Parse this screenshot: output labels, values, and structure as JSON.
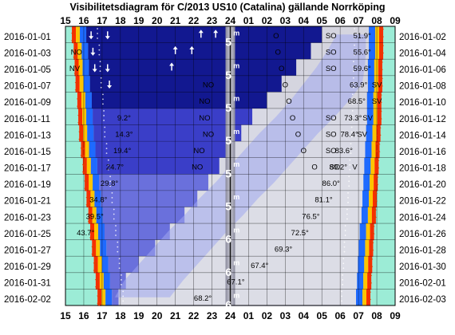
{
  "chart_data": {
    "type": "heatmap",
    "title": "Visibilitetsdiagram för C/2013 US10 (Catalina) gällande Norrköping",
    "x_tick_labels": [
      "15",
      "16",
      "17",
      "18",
      "19",
      "20",
      "21",
      "22",
      "23",
      "24",
      "01",
      "02",
      "03",
      "04",
      "05",
      "06",
      "07",
      "08",
      "09"
    ],
    "x_range_hours": [
      15,
      33
    ],
    "left_dates": [
      "2016-01-01",
      "2016-01-03",
      "2016-01-05",
      "2016-01-07",
      "2016-01-09",
      "2016-01-11",
      "2016-01-13",
      "2016-01-15",
      "2016-01-17",
      "2016-01-19",
      "2016-01-21",
      "2016-01-23",
      "2016-01-25",
      "2016-01-27",
      "2016-01-29",
      "2016-01-31",
      "2016-02-02"
    ],
    "right_dates": [
      "2016-01-02",
      "2016-01-04",
      "2016-01-06",
      "2016-01-08",
      "2016-01-10",
      "2016-01-12",
      "2016-01-14",
      "2016-01-16",
      "2016-01-18",
      "2016-01-20",
      "2016-01-22",
      "2016-01-24",
      "2016-01-26",
      "2016-01-28",
      "2016-01-30",
      "2016-02-01",
      "2016-02-03"
    ],
    "sunset_hour": [
      15.7,
      15.8,
      15.85,
      15.9,
      16.0,
      16.05,
      16.1,
      16.2,
      16.3,
      16.4,
      16.5,
      16.6,
      16.7,
      16.8,
      16.9,
      17.0,
      17.1
    ],
    "sunrise_hour": [
      32.0,
      32.0,
      31.95,
      31.95,
      31.9,
      31.9,
      31.85,
      31.8,
      31.75,
      31.7,
      31.65,
      31.6,
      31.5,
      31.45,
      31.4,
      31.35,
      31.3
    ],
    "comet_altitude_labels": [
      {
        "row": 0,
        "hour": 31.2,
        "text": "51.9°"
      },
      {
        "row": 1,
        "hour": 31.2,
        "text": "55.6°"
      },
      {
        "row": 2,
        "hour": 31.2,
        "text": "59.6°"
      },
      {
        "row": 3,
        "hour": 31.0,
        "text": "63.9°"
      },
      {
        "row": 4,
        "hour": 30.9,
        "text": "68.5°"
      },
      {
        "row": 5,
        "hour": 30.7,
        "text": "73.3°"
      },
      {
        "row": 6,
        "hour": 30.5,
        "text": "78.4°"
      },
      {
        "row": 7,
        "hour": 30.2,
        "text": "83.6°"
      },
      {
        "row": 8,
        "hour": 29.9,
        "text": "89.2°"
      },
      {
        "row": 9,
        "hour": 29.5,
        "text": "86.0°"
      },
      {
        "row": 10,
        "hour": 29.1,
        "text": "81.1°"
      },
      {
        "row": 11,
        "hour": 28.4,
        "text": "76.5°"
      },
      {
        "row": 12,
        "hour": 27.8,
        "text": "72.5°"
      },
      {
        "row": 13,
        "hour": 26.9,
        "text": "69.3°"
      },
      {
        "row": 14,
        "hour": 25.6,
        "text": "67.4°"
      },
      {
        "row": 15,
        "hour": 24.3,
        "text": "67.1°"
      },
      {
        "row": 16,
        "hour": 22.5,
        "text": "68.2°"
      },
      {
        "row": 5,
        "hour": 18.2,
        "text": "9.2°"
      },
      {
        "row": 6,
        "hour": 18.2,
        "text": "14.3°"
      },
      {
        "row": 7,
        "hour": 18.1,
        "text": "19.4°"
      },
      {
        "row": 8,
        "hour": 17.7,
        "text": "24.7°"
      },
      {
        "row": 9,
        "hour": 17.4,
        "text": "29.8°"
      },
      {
        "row": 10,
        "hour": 16.8,
        "text": "34.8°"
      },
      {
        "row": 11,
        "hour": 16.6,
        "text": "39.5°"
      },
      {
        "row": 12,
        "hour": 16.1,
        "text": "43.7°"
      }
    ],
    "direction_labels": [
      {
        "row": 0,
        "hour": 29.5,
        "text": "SO"
      },
      {
        "row": 1,
        "hour": 29.5,
        "text": "SO"
      },
      {
        "row": 2,
        "hour": 29.5,
        "text": "SO"
      },
      {
        "row": 3,
        "hour": 32.0,
        "text": "SV"
      },
      {
        "row": 4,
        "hour": 32.0,
        "text": "SV"
      },
      {
        "row": 5,
        "hour": 29.5,
        "text": "SO"
      },
      {
        "row": 5,
        "hour": 31.5,
        "text": "SV"
      },
      {
        "row": 6,
        "hour": 29.5,
        "text": "SO"
      },
      {
        "row": 6,
        "hour": 31.2,
        "text": "SV"
      },
      {
        "row": 7,
        "hour": 29.5,
        "text": "SO"
      },
      {
        "row": 8,
        "hour": 29.7,
        "text": "SO"
      },
      {
        "row": 8,
        "hour": 30.8,
        "text": "V"
      },
      {
        "row": 0,
        "hour": 26.5,
        "text": "O"
      },
      {
        "row": 1,
        "hour": 26.6,
        "text": "O"
      },
      {
        "row": 2,
        "hour": 26.8,
        "text": "O"
      },
      {
        "row": 3,
        "hour": 27.0,
        "text": "O"
      },
      {
        "row": 4,
        "hour": 27.2,
        "text": "O"
      },
      {
        "row": 5,
        "hour": 27.4,
        "text": "O"
      },
      {
        "row": 6,
        "hour": 27.7,
        "text": "O"
      },
      {
        "row": 7,
        "hour": 28.0,
        "text": "O"
      },
      {
        "row": 8,
        "hour": 28.6,
        "text": "O"
      },
      {
        "row": 1,
        "hour": 15.6,
        "text": "NO"
      },
      {
        "row": 2,
        "hour": 15.5,
        "text": "NV"
      },
      {
        "row": 3,
        "hour": 22.8,
        "text": "NO"
      },
      {
        "row": 4,
        "hour": 22.6,
        "text": "NO"
      },
      {
        "row": 5,
        "hour": 22.6,
        "text": "NO"
      },
      {
        "row": 6,
        "hour": 22.8,
        "text": "NO"
      },
      {
        "row": 7,
        "hour": 22.3,
        "text": "NO"
      },
      {
        "row": 8,
        "hour": 22.2,
        "text": "NO"
      }
    ],
    "moon_labels": [
      {
        "row": 0,
        "hour": 23.9,
        "text": "5"
      },
      {
        "row": 2,
        "hour": 23.9,
        "text": "5"
      },
      {
        "row": 4,
        "hour": 23.9,
        "text": "5"
      },
      {
        "row": 6,
        "hour": 23.9,
        "text": "5"
      },
      {
        "row": 8,
        "hour": 23.9,
        "text": "5"
      },
      {
        "row": 10,
        "hour": 23.9,
        "text": "5"
      },
      {
        "row": 12,
        "hour": 23.9,
        "text": "6"
      },
      {
        "row": 14,
        "hour": 23.9,
        "text": "6"
      },
      {
        "row": 16,
        "hour": 23.9,
        "text": "6"
      }
    ],
    "colors": {
      "day": "#9cecd6",
      "dusk_red": "#ff2a00",
      "dusk_yellow": "#ffc400",
      "dusk_blue": "#1e6aff",
      "night_deep": "#1818a0",
      "night_light": "#b8bcf0",
      "comet_up": "#e6e6e6",
      "grid": "#000000",
      "arrow": "#ffffff",
      "sun_arrow": "#e83800"
    }
  }
}
